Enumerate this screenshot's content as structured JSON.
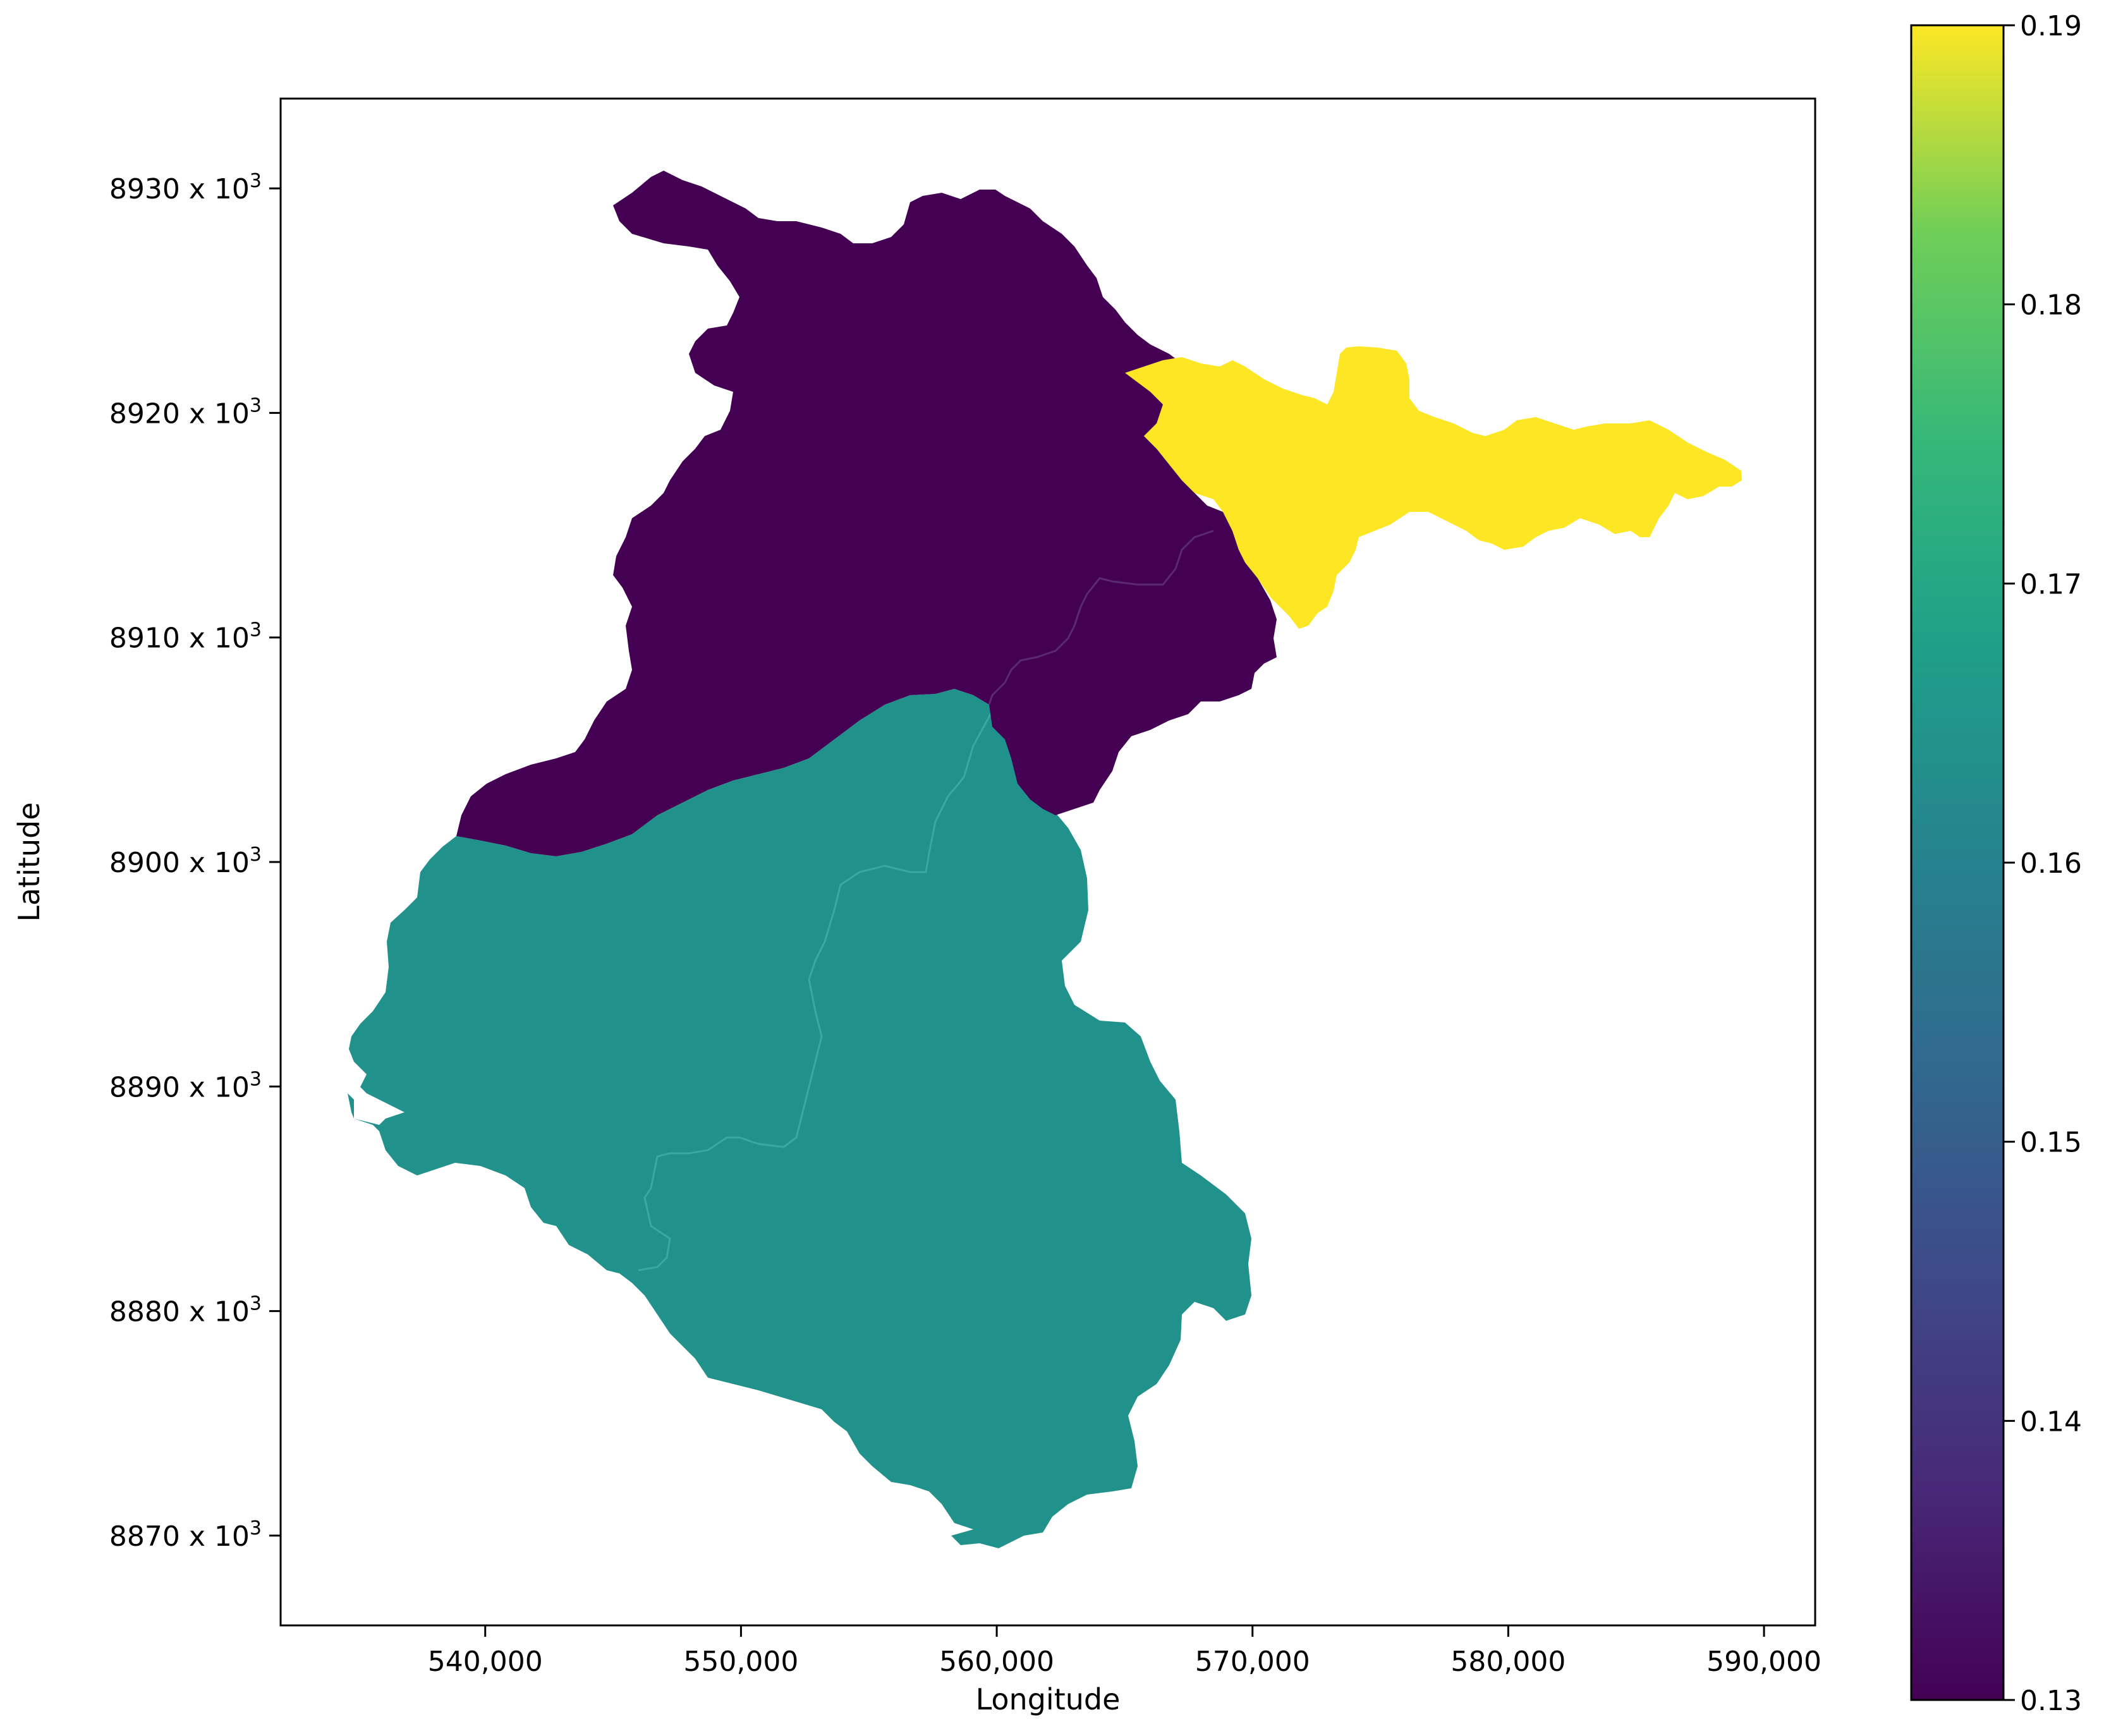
{
  "chart_data": {
    "type": "map",
    "xlabel": "Longitude",
    "ylabel": "Latitude",
    "xlim": [
      532000,
      592000
    ],
    "ylim": [
      8866000,
      8934000
    ],
    "x_ticks": [
      {
        "value": 540000,
        "label": "540,000"
      },
      {
        "value": 550000,
        "label": "550,000"
      },
      {
        "value": 560000,
        "label": "560,000"
      },
      {
        "value": 570000,
        "label": "570,000"
      },
      {
        "value": 580000,
        "label": "580,000"
      },
      {
        "value": 590000,
        "label": "590,000"
      }
    ],
    "y_ticks": [
      {
        "value": 8930000,
        "label": "8930 x 10",
        "exp": "3"
      },
      {
        "value": 8920000,
        "label": "8920 x 10",
        "exp": "3"
      },
      {
        "value": 8910000,
        "label": "8910 x 10",
        "exp": "3"
      },
      {
        "value": 8900000,
        "label": "8900 x 10",
        "exp": "3"
      },
      {
        "value": 8890000,
        "label": "8890 x 10",
        "exp": "3"
      },
      {
        "value": 8880000,
        "label": "8880 x 10",
        "exp": "3"
      },
      {
        "value": 8870000,
        "label": "8870 x 10",
        "exp": "3"
      }
    ],
    "colorbar": {
      "colormap": "viridis",
      "range": [
        0.13,
        0.19
      ],
      "ticks": [
        "0.19",
        "0.18",
        "0.17",
        "0.16",
        "0.15",
        "0.14",
        "0.13"
      ]
    },
    "regions": [
      {
        "id": "north",
        "value": 0.13,
        "color": "#440154"
      },
      {
        "id": "northeast",
        "value": 0.19,
        "color": "#fde725"
      },
      {
        "id": "south",
        "value": 0.16,
        "color": "#21918c"
      }
    ]
  }
}
